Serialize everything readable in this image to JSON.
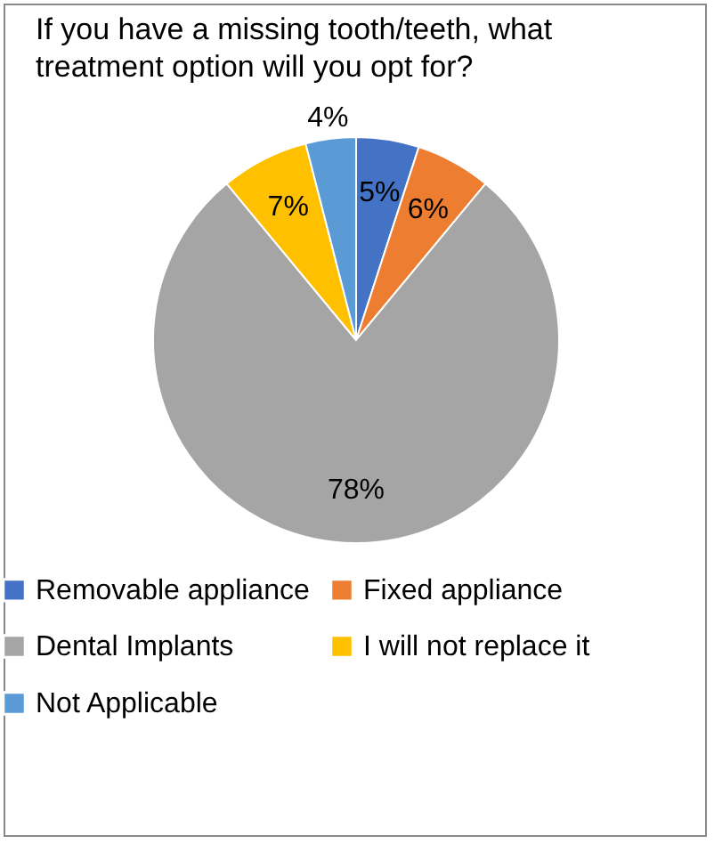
{
  "chart_data": {
    "type": "pie",
    "title": "If you have a missing tooth/teeth, what treatment option will you opt for?",
    "categories": [
      "Removable appliance",
      "Fixed appliance",
      "Dental Implants",
      "I will not replace it",
      "Not Applicable"
    ],
    "values": [
      5,
      6,
      78,
      7,
      4
    ],
    "colors": [
      "#4472c4",
      "#ed7d31",
      "#a5a5a5",
      "#ffc000",
      "#5b9bd5"
    ],
    "value_labels": [
      "5%",
      "6%",
      "78%",
      "7%",
      "4%"
    ],
    "legend": "bottom"
  }
}
